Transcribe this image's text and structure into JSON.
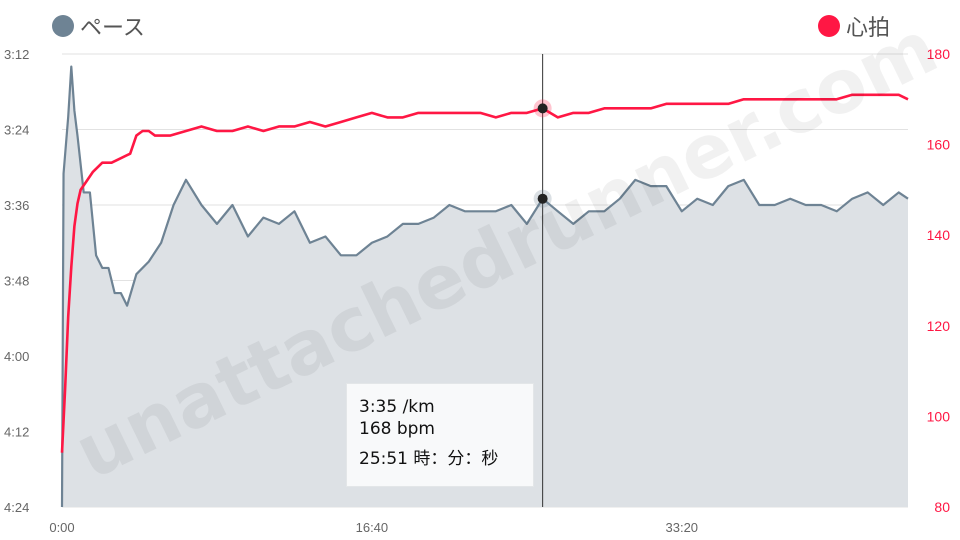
{
  "legend": {
    "pace_label": "ペース",
    "pace_color": "#6e8394",
    "hr_label": "心拍",
    "hr_color": "#ff1744"
  },
  "tooltip": {
    "pace": "3:35 /km",
    "hr": "168 bpm",
    "time": "25:51 時：分：秒"
  },
  "watermark": "unattachedrunner.com",
  "chart_data": {
    "type": "line",
    "x_axis": {
      "ticks": [
        "0:00",
        "16:40",
        "33:20"
      ],
      "tick_values_sec": [
        0,
        1000,
        2000
      ],
      "range_sec": [
        0,
        2730
      ]
    },
    "y_left": {
      "label": "ペース",
      "ticks": [
        "3:12",
        "3:24",
        "3:36",
        "3:48",
        "4:00",
        "4:12",
        "4:24"
      ],
      "range_sec_per_km": [
        192,
        264
      ],
      "inverted": true
    },
    "y_right": {
      "label": "心拍",
      "ticks": [
        80,
        100,
        120,
        140,
        160,
        180
      ],
      "range_bpm": [
        80,
        180
      ]
    },
    "cursor": {
      "time_sec": 1551,
      "pace_sec_per_km": 215,
      "hr_bpm": 168
    },
    "grid": true,
    "series": [
      {
        "name": "ペース",
        "axis": "left",
        "unit": "sec/km",
        "color": "#6e8394",
        "fill": "#dde1e5",
        "points": [
          [
            0,
            264
          ],
          [
            5,
            211
          ],
          [
            20,
            202
          ],
          [
            30,
            194
          ],
          [
            40,
            201
          ],
          [
            50,
            205
          ],
          [
            70,
            214
          ],
          [
            90,
            214
          ],
          [
            110,
            224
          ],
          [
            130,
            226
          ],
          [
            150,
            226
          ],
          [
            170,
            230
          ],
          [
            190,
            230
          ],
          [
            210,
            232
          ],
          [
            240,
            227
          ],
          [
            280,
            225
          ],
          [
            320,
            222
          ],
          [
            360,
            216
          ],
          [
            400,
            212
          ],
          [
            450,
            216
          ],
          [
            500,
            219
          ],
          [
            550,
            216
          ],
          [
            600,
            221
          ],
          [
            650,
            218
          ],
          [
            700,
            219
          ],
          [
            750,
            217
          ],
          [
            800,
            222
          ],
          [
            850,
            221
          ],
          [
            900,
            224
          ],
          [
            950,
            224
          ],
          [
            1000,
            222
          ],
          [
            1050,
            221
          ],
          [
            1100,
            219
          ],
          [
            1150,
            219
          ],
          [
            1200,
            218
          ],
          [
            1250,
            216
          ],
          [
            1300,
            217
          ],
          [
            1350,
            217
          ],
          [
            1400,
            217
          ],
          [
            1450,
            216
          ],
          [
            1500,
            219
          ],
          [
            1551,
            215
          ],
          [
            1600,
            217
          ],
          [
            1650,
            219
          ],
          [
            1700,
            217
          ],
          [
            1750,
            217
          ],
          [
            1800,
            215
          ],
          [
            1850,
            212
          ],
          [
            1900,
            213
          ],
          [
            1950,
            213
          ],
          [
            2000,
            217
          ],
          [
            2050,
            215
          ],
          [
            2100,
            216
          ],
          [
            2150,
            213
          ],
          [
            2200,
            212
          ],
          [
            2250,
            216
          ],
          [
            2300,
            216
          ],
          [
            2350,
            215
          ],
          [
            2400,
            216
          ],
          [
            2450,
            216
          ],
          [
            2500,
            217
          ],
          [
            2550,
            215
          ],
          [
            2600,
            214
          ],
          [
            2650,
            216
          ],
          [
            2700,
            214
          ],
          [
            2730,
            215
          ]
        ]
      },
      {
        "name": "心拍",
        "axis": "right",
        "unit": "bpm",
        "color": "#ff1744",
        "points": [
          [
            0,
            92
          ],
          [
            10,
            106
          ],
          [
            20,
            122
          ],
          [
            30,
            133
          ],
          [
            40,
            142
          ],
          [
            50,
            147
          ],
          [
            60,
            150
          ],
          [
            80,
            152
          ],
          [
            100,
            154
          ],
          [
            130,
            156
          ],
          [
            160,
            156
          ],
          [
            190,
            157
          ],
          [
            220,
            158
          ],
          [
            240,
            162
          ],
          [
            260,
            163
          ],
          [
            280,
            163
          ],
          [
            300,
            162
          ],
          [
            350,
            162
          ],
          [
            400,
            163
          ],
          [
            450,
            164
          ],
          [
            500,
            163
          ],
          [
            550,
            163
          ],
          [
            600,
            164
          ],
          [
            650,
            163
          ],
          [
            700,
            164
          ],
          [
            750,
            164
          ],
          [
            800,
            165
          ],
          [
            850,
            164
          ],
          [
            900,
            165
          ],
          [
            950,
            166
          ],
          [
            1000,
            167
          ],
          [
            1050,
            166
          ],
          [
            1100,
            166
          ],
          [
            1150,
            167
          ],
          [
            1200,
            167
          ],
          [
            1250,
            167
          ],
          [
            1300,
            167
          ],
          [
            1350,
            167
          ],
          [
            1400,
            166
          ],
          [
            1450,
            167
          ],
          [
            1500,
            167
          ],
          [
            1551,
            168
          ],
          [
            1600,
            166
          ],
          [
            1650,
            167
          ],
          [
            1700,
            167
          ],
          [
            1750,
            168
          ],
          [
            1800,
            168
          ],
          [
            1850,
            168
          ],
          [
            1900,
            168
          ],
          [
            1950,
            169
          ],
          [
            2000,
            169
          ],
          [
            2050,
            169
          ],
          [
            2100,
            169
          ],
          [
            2150,
            169
          ],
          [
            2200,
            170
          ],
          [
            2250,
            170
          ],
          [
            2300,
            170
          ],
          [
            2350,
            170
          ],
          [
            2400,
            170
          ],
          [
            2450,
            170
          ],
          [
            2500,
            170
          ],
          [
            2550,
            171
          ],
          [
            2600,
            171
          ],
          [
            2650,
            171
          ],
          [
            2700,
            171
          ],
          [
            2730,
            170
          ]
        ]
      }
    ]
  }
}
